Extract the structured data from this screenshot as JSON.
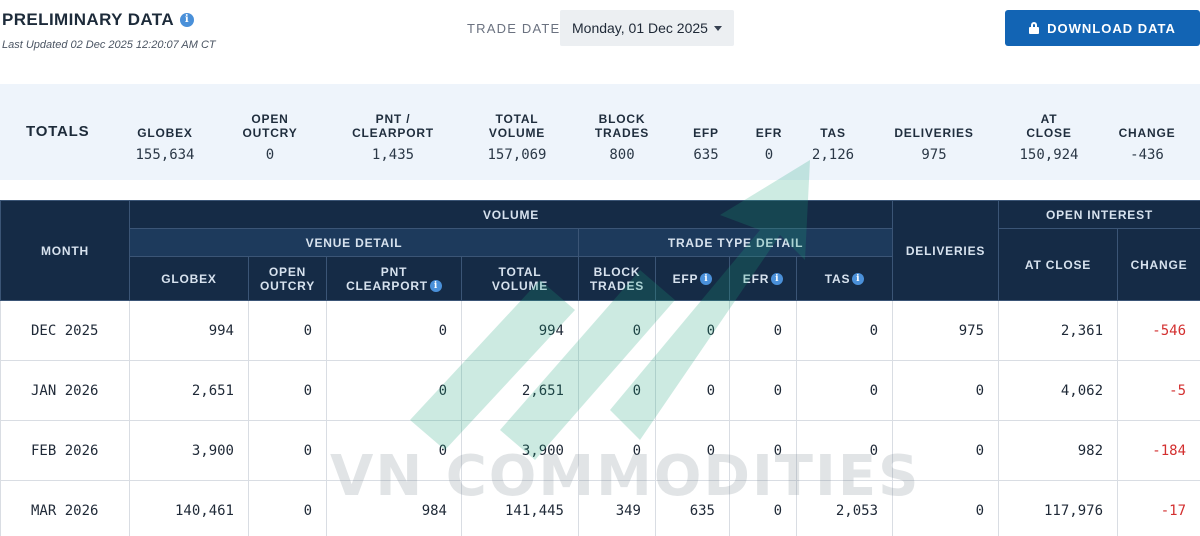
{
  "header": {
    "title": "PRELIMINARY DATA",
    "info_glyph": "i",
    "last_updated": "Last Updated 02 Dec 2025 12:20:07 AM CT",
    "trade_date_label": "TRADE DATE",
    "trade_date_value": "Monday, 01 Dec 2025",
    "download_label": "DOWNLOAD DATA"
  },
  "totals": {
    "label": "TOTALS",
    "columns": [
      {
        "header": "GLOBEX",
        "value": "155,634"
      },
      {
        "header": "OPEN\nOUTCRY",
        "value": "0"
      },
      {
        "header": "PNT /\nCLEARPORT",
        "value": "1,435"
      },
      {
        "header": "TOTAL\nVOLUME",
        "value": "157,069"
      },
      {
        "header": "BLOCK\nTRADES",
        "value": "800"
      },
      {
        "header": "EFP",
        "value": "635"
      },
      {
        "header": "EFR",
        "value": "0"
      },
      {
        "header": "TAS",
        "value": "2,126"
      },
      {
        "header": "DELIVERIES",
        "value": "975"
      },
      {
        "header": "AT\nCLOSE",
        "value": "150,924"
      },
      {
        "header": "CHANGE",
        "value": "-436"
      }
    ]
  },
  "table": {
    "month_header": "MONTH",
    "volume_header": "VOLUME",
    "venue_detail_header": "VENUE DETAIL",
    "trade_type_header": "TRADE TYPE DETAIL",
    "deliveries_header": "DELIVERIES",
    "open_interest_header": "OPEN INTEREST",
    "sub_headers": {
      "globex": "GLOBEX",
      "open_outcry": "OPEN\nOUTCRY",
      "pnt_clearport": "PNT\nCLEARPORT",
      "total_volume": "TOTAL\nVOLUME",
      "block_trades": "BLOCK\nTRADES",
      "efp": "EFP",
      "efr": "EFR",
      "tas": "TAS",
      "at_close": "AT CLOSE",
      "change": "CHANGE"
    },
    "rows": [
      {
        "month": "DEC 2025",
        "globex": "994",
        "open_outcry": "0",
        "pnt": "0",
        "total": "994",
        "block": "0",
        "efp": "0",
        "efr": "0",
        "tas": "0",
        "deliveries": "975",
        "at_close": "2,361",
        "change": "-546"
      },
      {
        "month": "JAN 2026",
        "globex": "2,651",
        "open_outcry": "0",
        "pnt": "0",
        "total": "2,651",
        "block": "0",
        "efp": "0",
        "efr": "0",
        "tas": "0",
        "deliveries": "0",
        "at_close": "4,062",
        "change": "-5"
      },
      {
        "month": "FEB 2026",
        "globex": "3,900",
        "open_outcry": "0",
        "pnt": "0",
        "total": "3,900",
        "block": "0",
        "efp": "0",
        "efr": "0",
        "tas": "0",
        "deliveries": "0",
        "at_close": "982",
        "change": "-184"
      },
      {
        "month": "MAR 2026",
        "globex": "140,461",
        "open_outcry": "0",
        "pnt": "984",
        "total": "141,445",
        "block": "349",
        "efp": "635",
        "efr": "0",
        "tas": "2,053",
        "deliveries": "0",
        "at_close": "117,976",
        "change": "-17"
      }
    ]
  },
  "watermark": {
    "text": "VN COMMODITIES"
  },
  "colors": {
    "accent": "#1264b4",
    "header_dark": "#152b46",
    "negative": "#d32f2f",
    "totals_bg": "#eef4fb"
  },
  "icons": [
    "info-icon",
    "caret-down-icon",
    "lock-icon",
    "watermark-arrow-icon"
  ]
}
